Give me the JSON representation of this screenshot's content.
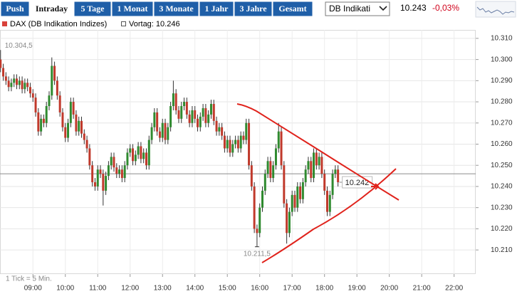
{
  "toolbar": {
    "buttons": [
      "Push",
      "Intraday",
      "5 Tage",
      "1 Monat",
      "3 Monate",
      "1 Jahr",
      "3 Jahre",
      "Gesamt"
    ],
    "selected": "Intraday",
    "select": "DB Indikati",
    "last_price": "10.243",
    "change": "-0,03%"
  },
  "chart_data": {
    "type": "candlestick",
    "series_name": "DAX (DB Indikation Indizes)",
    "color_up": "#2f8a2f",
    "color_down": "#c0392b",
    "legend_color": "#d9413a",
    "reference": {
      "value": 10246,
      "label": "Vortag: 10.246"
    },
    "price_marker": {
      "value": 10242,
      "label": "10.242"
    },
    "annotations": [
      {
        "value": 10304.5,
        "label": "10.304,5"
      },
      {
        "value": 10211.5,
        "label": "10.211,5"
      }
    ],
    "note": "1 Tick = 5 Min.",
    "x": [
      480,
      485,
      490,
      495,
      500,
      505,
      510,
      515,
      520,
      525,
      530,
      535,
      540,
      545,
      550,
      555,
      560,
      565,
      570,
      575,
      580,
      585,
      590,
      595,
      600,
      605,
      610,
      615,
      620,
      625,
      630,
      635,
      640,
      645,
      650,
      655,
      660,
      665,
      670,
      675,
      680,
      685,
      690,
      695,
      700,
      705,
      710,
      715,
      720,
      725,
      730,
      735,
      740,
      745,
      750,
      755,
      760,
      765,
      770,
      775,
      780,
      785,
      790,
      795,
      800,
      805,
      810,
      815,
      820,
      825,
      830,
      835,
      840,
      845,
      850,
      855,
      860,
      865,
      870,
      875,
      880,
      885,
      890,
      895,
      900,
      905,
      910,
      915,
      920,
      925,
      930,
      935,
      940,
      945,
      950,
      955,
      960,
      965,
      970,
      975,
      980,
      985,
      990,
      995,
      1000,
      1005,
      1010,
      1015,
      1020,
      1025,
      1030,
      1035,
      1040,
      1045,
      1050,
      1055,
      1060,
      1065,
      1070,
      1075,
      1080,
      1085,
      1090,
      1095,
      1100,
      1105
    ],
    "open": [
      10300,
      10296,
      10292,
      10290,
      10287,
      10289,
      10291,
      10288,
      10290,
      10286,
      10289,
      10287,
      10284,
      10282,
      10275,
      10266,
      10272,
      10270,
      10278,
      10283,
      10297,
      10290,
      10283,
      10275,
      10268,
      10263,
      10270,
      10280,
      10274,
      10266,
      10271,
      10265,
      10262,
      10258,
      10250,
      10242,
      10240,
      10248,
      10246,
      10238,
      10245,
      10250,
      10254,
      10249,
      10246,
      10248,
      10244,
      10250,
      10256,
      10258,
      10252,
      10255,
      10259,
      10253,
      10256,
      10250,
      10262,
      10268,
      10275,
      10266,
      10263,
      10270,
      10262,
      10268,
      10278,
      10284,
      10276,
      10272,
      10278,
      10280,
      10274,
      10270,
      10276,
      10272,
      10268,
      10273,
      10277,
      10270,
      10274,
      10279,
      10271,
      10266,
      10268,
      10264,
      10258,
      10262,
      10256,
      10260,
      10262,
      10258,
      10264,
      10262,
      10270,
      10250,
      10240,
      10220,
      10218,
      10230,
      10238,
      10246,
      10252,
      10244,
      10250,
      10258,
      10266,
      10250,
      10232,
      10218,
      10228,
      10236,
      10230,
      10240,
      10234,
      10242,
      10248,
      10252,
      10244,
      10256,
      10250,
      10254,
      10246,
      10238,
      10228,
      10236,
      10246,
      10248
    ],
    "high": [
      10304.5,
      10298,
      10294,
      10292,
      10291,
      10293,
      10293,
      10292,
      10292,
      10291,
      10291,
      10289,
      10286,
      10284,
      10277,
      10274,
      10274,
      10280,
      10285,
      10301,
      10299,
      10292,
      10285,
      10277,
      10270,
      10272,
      10282,
      10282,
      10276,
      10273,
      10273,
      10267,
      10264,
      10260,
      10252,
      10244,
      10250,
      10250,
      10248,
      10247,
      10252,
      10256,
      10256,
      10251,
      10250,
      10250,
      10252,
      10258,
      10260,
      10260,
      10257,
      10261,
      10261,
      10258,
      10258,
      10264,
      10270,
      10277,
      10277,
      10268,
      10272,
      10272,
      10270,
      10280,
      10290,
      10286,
      10278,
      10280,
      10282,
      10282,
      10276,
      10278,
      10278,
      10274,
      10275,
      10279,
      10279,
      10276,
      10281,
      10281,
      10273,
      10270,
      10270,
      10266,
      10264,
      10264,
      10262,
      10264,
      10264,
      10266,
      10266,
      10272,
      10272,
      10252,
      10242,
      10222,
      10232,
      10240,
      10248,
      10254,
      10254,
      10252,
      10260,
      10270,
      10268,
      10252,
      10234,
      10230,
      10238,
      10238,
      10242,
      10242,
      10244,
      10250,
      10254,
      10254,
      10258,
      10258,
      10256,
      10256,
      10248,
      10240,
      10238,
      10248,
      10250,
      10250
    ],
    "low": [
      10294,
      10290,
      10288,
      10285,
      10285,
      10287,
      10286,
      10286,
      10284,
      10284,
      10285,
      10282,
      10280,
      10273,
      10264,
      10264,
      10268,
      10268,
      10276,
      10281,
      10288,
      10281,
      10273,
      10266,
      10261,
      10261,
      10268,
      10272,
      10264,
      10264,
      10263,
      10260,
      10256,
      10248,
      10240,
      10238,
      10238,
      10244,
      10231,
      10236,
      10243,
      10248,
      10247,
      10244,
      10244,
      10242,
      10242,
      10248,
      10254,
      10250,
      10250,
      10253,
      10251,
      10251,
      10248,
      10248,
      10260,
      10266,
      10264,
      10261,
      10261,
      10260,
      10260,
      10266,
      10276,
      10274,
      10270,
      10270,
      10276,
      10272,
      10268,
      10268,
      10270,
      10266,
      10266,
      10271,
      10268,
      10268,
      10272,
      10269,
      10264,
      10264,
      10262,
      10256,
      10256,
      10254,
      10254,
      10258,
      10256,
      10256,
      10260,
      10260,
      10248,
      10238,
      10218,
      10211.5,
      10216,
      10228,
      10236,
      10244,
      10242,
      10242,
      10248,
      10256,
      10248,
      10230,
      10213,
      10216,
      10226,
      10228,
      10228,
      10232,
      10232,
      10240,
      10246,
      10242,
      10242,
      10248,
      10248,
      10244,
      10236,
      10226,
      10226,
      10234,
      10244,
      10240
    ],
    "close": [
      10296,
      10292,
      10290,
      10287,
      10289,
      10291,
      10288,
      10290,
      10286,
      10289,
      10287,
      10284,
      10282,
      10275,
      10266,
      10272,
      10270,
      10278,
      10283,
      10297,
      10290,
      10283,
      10275,
      10268,
      10263,
      10270,
      10280,
      10274,
      10266,
      10271,
      10265,
      10262,
      10258,
      10250,
      10242,
      10240,
      10248,
      10246,
      10238,
      10245,
      10250,
      10254,
      10249,
      10246,
      10248,
      10244,
      10250,
      10256,
      10258,
      10252,
      10255,
      10259,
      10253,
      10256,
      10250,
      10262,
      10268,
      10275,
      10266,
      10263,
      10270,
      10262,
      10268,
      10278,
      10284,
      10276,
      10272,
      10278,
      10280,
      10274,
      10270,
      10276,
      10272,
      10268,
      10273,
      10277,
      10270,
      10274,
      10279,
      10271,
      10266,
      10268,
      10264,
      10258,
      10262,
      10256,
      10260,
      10262,
      10258,
      10264,
      10262,
      10270,
      10250,
      10240,
      10220,
      10218,
      10230,
      10238,
      10246,
      10252,
      10244,
      10250,
      10258,
      10266,
      10250,
      10232,
      10218,
      10228,
      10236,
      10230,
      10240,
      10234,
      10242,
      10248,
      10252,
      10244,
      10256,
      10250,
      10254,
      10246,
      10238,
      10228,
      10236,
      10246,
      10248,
      10242
    ],
    "xlim": [
      479,
      1360
    ],
    "xticks": [
      {
        "value": 540,
        "label": "09:00"
      },
      {
        "value": 600,
        "label": "10:00"
      },
      {
        "value": 660,
        "label": "11:00"
      },
      {
        "value": 720,
        "label": "12:00"
      },
      {
        "value": 780,
        "label": "13:00"
      },
      {
        "value": 840,
        "label": "14:00"
      },
      {
        "value": 900,
        "label": "15:00"
      },
      {
        "value": 960,
        "label": "16:00"
      },
      {
        "value": 1020,
        "label": "17:00"
      },
      {
        "value": 1080,
        "label": "18:00"
      },
      {
        "value": 1140,
        "label": "19:00"
      },
      {
        "value": 1200,
        "label": "20:00"
      },
      {
        "value": 1260,
        "label": "21:00"
      },
      {
        "value": 1320,
        "label": "22:00"
      }
    ],
    "ylim": [
      10198.6,
      10314
    ],
    "yticks": [
      {
        "value": 10210,
        "label": "10.210"
      },
      {
        "value": 10220,
        "label": "10.220"
      },
      {
        "value": 10230,
        "label": "10.230"
      },
      {
        "value": 10240,
        "label": "10.240"
      },
      {
        "value": 10250,
        "label": "10.250"
      },
      {
        "value": 10260,
        "label": "10.260"
      },
      {
        "value": 10270,
        "label": "10.270"
      },
      {
        "value": 10280,
        "label": "10.280"
      },
      {
        "value": 10290,
        "label": "10.290"
      },
      {
        "value": 10300,
        "label": "10.300"
      },
      {
        "value": 10310,
        "label": "10.310"
      }
    ],
    "grid": true
  }
}
